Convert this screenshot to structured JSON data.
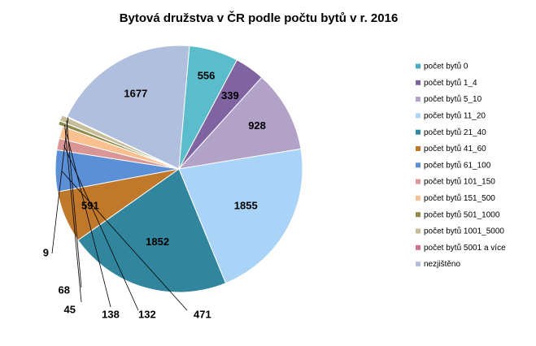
{
  "chart_data": {
    "type": "pie",
    "title": "Bytová družstva v ČR podle počtu bytů v r. 2016",
    "legend_position": "right",
    "slices": [
      {
        "label": "počet bytů 0",
        "value": 0,
        "color": "#4bacc6"
      },
      {
        "label": "počet bytů 1_4",
        "value": 339,
        "color": "#8064a2"
      },
      {
        "label": "počet bytů 5_10",
        "value": 928,
        "color": "#b2a2c7"
      },
      {
        "label": "počet bytů 11_20",
        "value": 1855,
        "color": "#a9d4f7"
      },
      {
        "label": "počet bytů 21_40",
        "value": 1852,
        "color": "#31859c"
      },
      {
        "label": "počet bytů 41_60",
        "value": 591,
        "color": "#c0782a"
      },
      {
        "label": "počet bytů 61_100",
        "value": 471,
        "color": "#5b8fd6"
      },
      {
        "label": "počet bytů 101_150",
        "value": 132,
        "color": "#d99694"
      },
      {
        "label": "počet bytů 151_500",
        "value": 138,
        "color": "#fac090"
      },
      {
        "label": "počet bytů 501_1000",
        "value": 45,
        "color": "#8f8a4a"
      },
      {
        "label": "počet bytů 1001_5000",
        "value": 68,
        "color": "#c4bd97"
      },
      {
        "label": "počet bytů 5001 a více",
        "value": 9,
        "color": "#d0708c"
      },
      {
        "label": "nezjištěno",
        "value": 1677,
        "color": "#b0bfde"
      },
      {
        "label": "",
        "value": 556,
        "color": "#5bbccc"
      }
    ]
  }
}
